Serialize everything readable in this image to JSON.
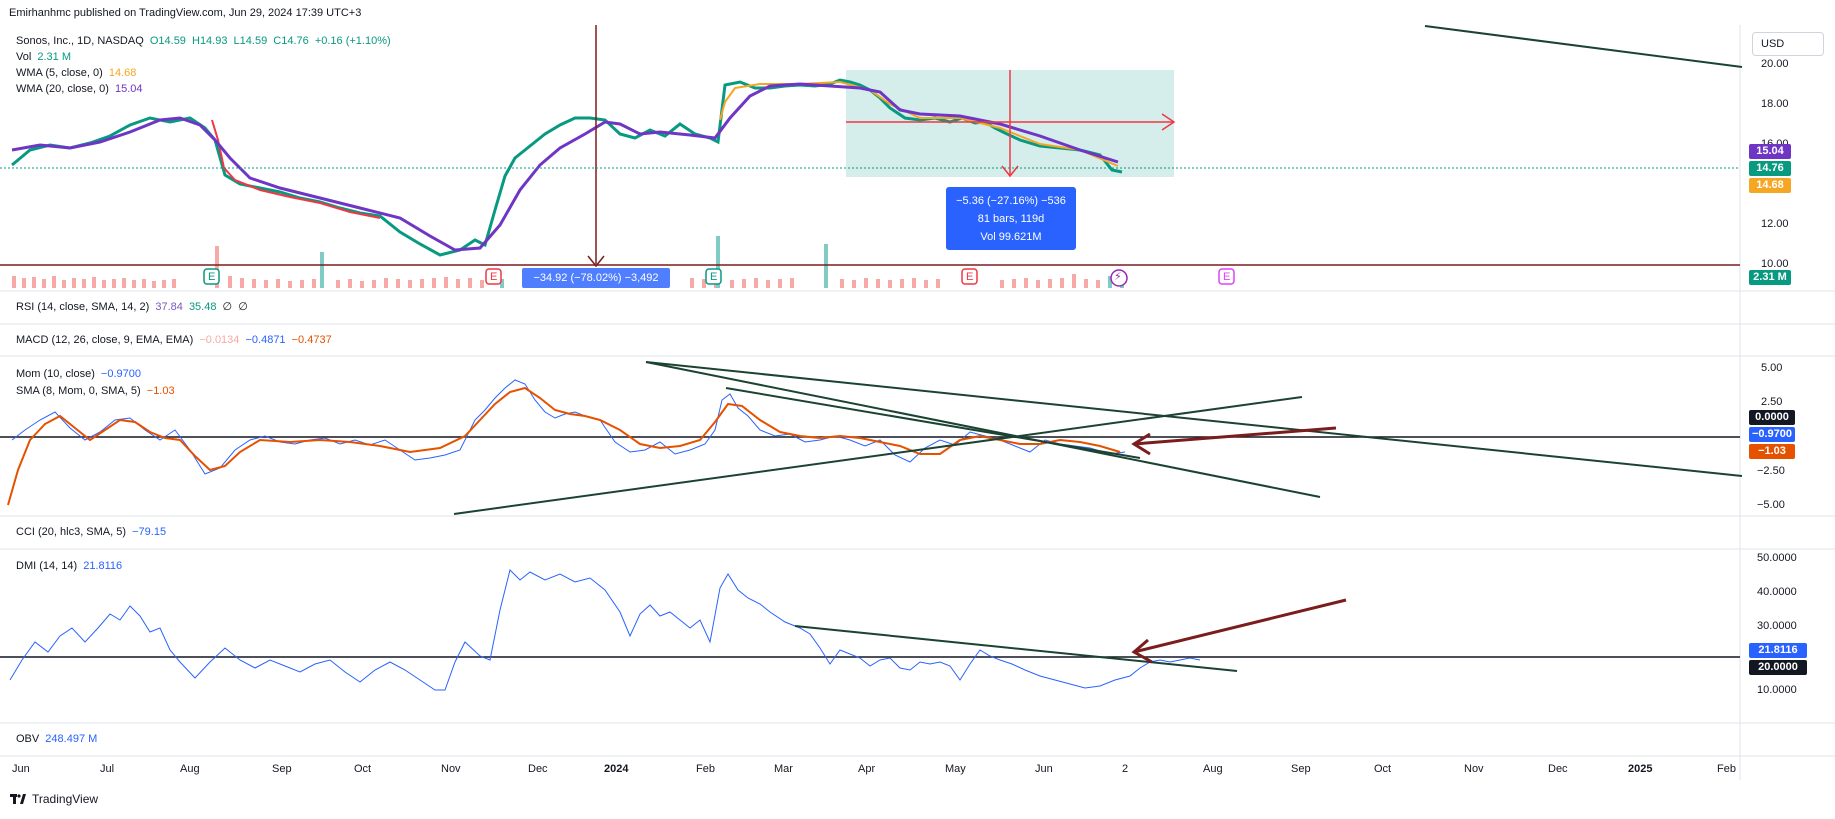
{
  "header": {
    "publish_line": "Emirhanhmc published on TradingView.com, Jun 29, 2024 17:39 UTC+3"
  },
  "main_legend": {
    "symbol": "Sonos, Inc., 1D, NASDAQ",
    "open": "O14.59",
    "high": "H14.93",
    "low": "L14.59",
    "close": "C14.76",
    "change": "+0.16 (+1.10%)",
    "vol_label": "Vol",
    "vol_value": "2.31 M",
    "wma5_label": "WMA (5, close, 0)",
    "wma5_value": "14.68",
    "wma20_label": "WMA (20, close, 0)",
    "wma20_value": "15.04"
  },
  "currency": "USD",
  "price_axis": [
    "20.00",
    "18.00",
    "16.00",
    "14.00",
    "12.00",
    "10.00"
  ],
  "price_badges": {
    "wma20": "15.04",
    "close": "14.76",
    "wma5": "14.68",
    "volume": "2.31 M"
  },
  "measure_box": {
    "line1": "−5.36 (−27.16%) −536",
    "line2": "81 bars, 119d",
    "line3": "Vol 99.621M"
  },
  "measure_box_2": {
    "line1": "−34.92 (−78.02%) −3,492"
  },
  "earnings_markers": [
    "E",
    "E",
    "E",
    "E",
    "E"
  ],
  "rsi_legend": {
    "label": "RSI (14, close, SMA, 14, 2)",
    "v1": "37.84",
    "v2": "35.48",
    "v3": "∅",
    "v4": "∅"
  },
  "macd_legend": {
    "label": "MACD (12, 26, close, 9, EMA, EMA)",
    "v1": "−0.0134",
    "v2": "−0.4871",
    "v3": "−0.4737"
  },
  "mom_legend": {
    "label": "Mom (10, close)",
    "value": "−0.9700",
    "sma_label": "SMA (8, Mom, 0, SMA, 5)",
    "sma_value": "−1.03"
  },
  "mom_axis": [
    "5.00",
    "2.50",
    "−2.50",
    "−5.00"
  ],
  "mom_badges": {
    "zero": "0.0000",
    "mom": "−0.9700",
    "sma": "−1.03"
  },
  "cci_legend": {
    "label": "CCI (20, hlc3, SMA, 5)",
    "value": "−79.15"
  },
  "dmi_legend": {
    "label": "DMI (14, 14)",
    "value": "21.8116"
  },
  "dmi_axis": [
    "50.0000",
    "40.0000",
    "30.0000",
    "10.0000"
  ],
  "dmi_badges": {
    "dmi": "21.8116",
    "level": "20.0000"
  },
  "obv_legend": {
    "label": "OBV",
    "value": "248.497 M"
  },
  "time_axis": [
    "Jun",
    "Jul",
    "Aug",
    "Sep",
    "Oct",
    "Nov",
    "Dec",
    "2024",
    "Feb",
    "Mar",
    "Apr",
    "May",
    "Jun",
    "2",
    "Aug",
    "Sep",
    "Oct",
    "Nov",
    "Dec",
    "2025",
    "Feb"
  ],
  "footer": {
    "brand": "TradingView"
  },
  "colors": {
    "up": "#089981",
    "down": "#f23645",
    "wma5": "#f5a623",
    "wma20": "#6f35c5",
    "mom": "#2962ff",
    "sma": "#e65100",
    "trend": "#1b4332",
    "arrow": "#7b1d1d"
  }
}
